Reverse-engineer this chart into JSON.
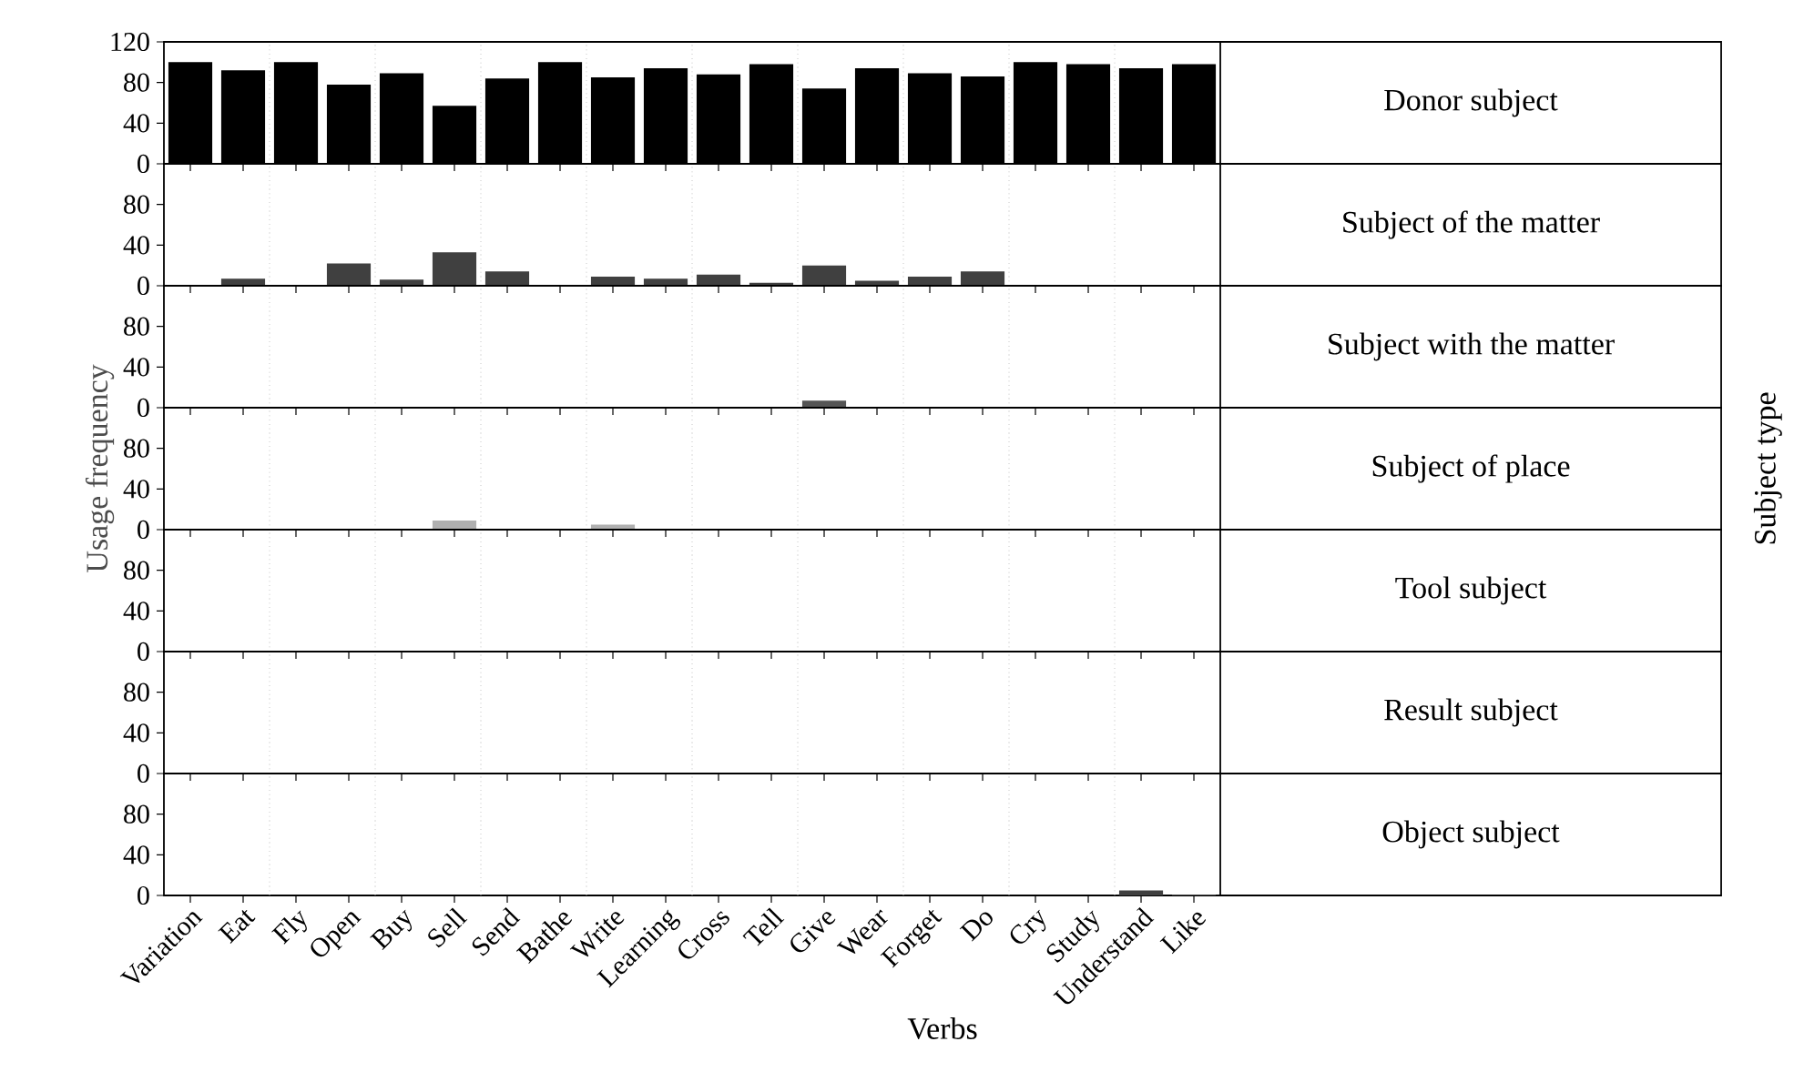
{
  "chart_data": [
    {
      "type": "bar",
      "categories": [
        null,
        null,
        null,
        null,
        null,
        null,
        null,
        null,
        null,
        null,
        null,
        null,
        null,
        null,
        null,
        null,
        null,
        null,
        null,
        null
      ],
      "series": [
        {
          "name": "Donor subject",
          "color": "#000000",
          "values": [
            100,
            92,
            100,
            78,
            89,
            57,
            84,
            100,
            85,
            94,
            88,
            98,
            74,
            94,
            89,
            86,
            100,
            98,
            94,
            98
          ]
        }
      ],
      "ylim": [
        0,
        120
      ],
      "yticks": [
        0,
        40,
        80,
        120
      ],
      "tick_labels": "y",
      "grid": "x"
    },
    {
      "type": "bar",
      "categories": [
        null,
        null,
        null,
        null,
        null,
        null,
        null,
        null,
        null,
        null,
        null,
        null,
        null,
        null,
        null,
        null,
        null,
        null,
        null,
        null
      ],
      "series": [
        {
          "name": "Subject of the matter",
          "color": "#404040",
          "values": [
            0,
            7,
            0,
            22,
            6,
            33,
            14,
            0,
            9,
            7,
            11,
            3,
            20,
            5,
            9,
            14,
            0,
            0,
            0,
            0
          ]
        }
      ],
      "ylim": [
        0,
        120
      ],
      "yticks": [
        0,
        40,
        80
      ],
      "tick_labels": "y",
      "grid": "x"
    },
    {
      "type": "bar",
      "categories": [
        null,
        null,
        null,
        null,
        null,
        null,
        null,
        null,
        null,
        null,
        null,
        null,
        null,
        null,
        null,
        null,
        null,
        null,
        null,
        null
      ],
      "series": [
        {
          "name": "Subject with the matter",
          "color": "#555555",
          "values": [
            0,
            0,
            0,
            0,
            0,
            0,
            0,
            0,
            0,
            0,
            0,
            0,
            7,
            0,
            0,
            0,
            0,
            0,
            0,
            0
          ]
        }
      ],
      "ylim": [
        0,
        120
      ],
      "yticks": [
        0,
        40,
        80
      ],
      "tick_labels": "y",
      "grid": "x"
    },
    {
      "type": "bar",
      "ylabel": "Usage frequency",
      "y2label": "Subject type",
      "categories": [
        null,
        null,
        null,
        null,
        null,
        null,
        null,
        null,
        null,
        null,
        null,
        null,
        null,
        null,
        null,
        null,
        null,
        null,
        null,
        null
      ],
      "series": [
        {
          "name": "Subject of place",
          "color": "#b0b0b0",
          "values": [
            0,
            0,
            0,
            null,
            0,
            9,
            0,
            0,
            5,
            0,
            0,
            0,
            0,
            0,
            0,
            0,
            0,
            0,
            0,
            0
          ]
        }
      ],
      "ylim": [
        0,
        120
      ],
      "yticks": [
        0,
        40,
        80
      ],
      "tick_labels": "y",
      "grid": "x"
    },
    {
      "type": "bar",
      "categories": [
        null,
        null,
        null,
        null,
        null,
        null,
        null,
        null,
        null,
        null,
        null,
        null,
        null,
        null,
        null,
        null,
        null,
        null,
        null,
        null
      ],
      "series": [
        {
          "name": "Tool subject",
          "values": [
            0,
            0,
            0,
            0,
            0,
            0,
            0,
            0,
            0,
            0,
            0,
            0,
            0,
            0,
            0,
            0,
            0,
            0,
            0,
            0
          ]
        }
      ],
      "ylim": [
        0,
        120
      ],
      "yticks": [
        0,
        40,
        80
      ],
      "tick_labels": "y",
      "grid": "x"
    },
    {
      "type": "bar",
      "categories": [
        null,
        null,
        null,
        null,
        null,
        null,
        null,
        null,
        null,
        null,
        null,
        null,
        null,
        null,
        null,
        null,
        null,
        null,
        null,
        null
      ],
      "series": [
        {
          "name": "Result subject",
          "values": [
            0,
            0,
            0,
            0,
            0,
            0,
            0,
            0,
            0,
            0,
            0,
            0,
            0,
            0,
            0,
            0,
            0,
            0,
            0,
            0
          ]
        }
      ],
      "ylim": [
        0,
        120
      ],
      "yticks": [
        0,
        40,
        80
      ],
      "tick_labels": "y",
      "grid": "x"
    },
    {
      "type": "bar",
      "xlabel": "Verbs",
      "categories": [
        "Variation",
        "Eat",
        "Fly",
        "Open",
        "Buy",
        "Sell",
        "Send",
        "Bathe",
        "Write",
        "Learning",
        "Cross",
        "Tell",
        "Give",
        "Wear",
        "Forget",
        "Do",
        "Cry",
        "Study",
        "Understand",
        "Like"
      ],
      "series": [
        {
          "name": "Object subject",
          "color": "#404040",
          "values": [
            0,
            0,
            0,
            0,
            0,
            0,
            0,
            0,
            0,
            0,
            0,
            0,
            0,
            0,
            0,
            0,
            0,
            0,
            5,
            1
          ]
        }
      ],
      "ylim": [
        0,
        120
      ],
      "yticks": [
        0,
        40,
        80
      ],
      "grid": "x"
    }
  ]
}
